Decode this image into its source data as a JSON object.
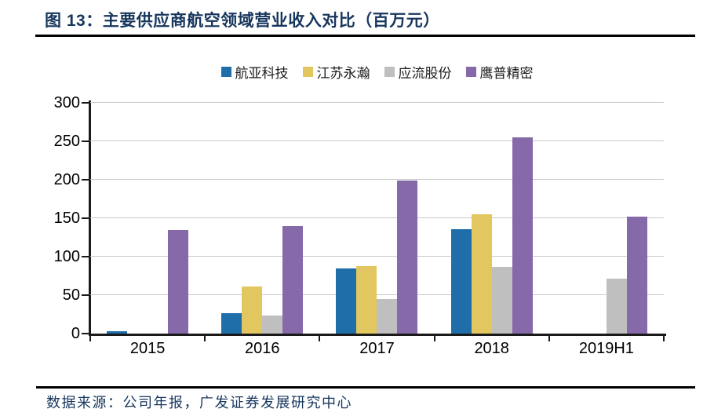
{
  "figure": {
    "title": "图 13：主要供应商航空领域营业收入对比（百万元）",
    "source": "数据来源：公司年报，广发证券发展研究中心"
  },
  "style": {
    "title_color": "#17365D",
    "rule_color": "#000000",
    "axis_color": "#1A1A1A",
    "gridline_color": "#C9C9C9",
    "tick_label_color": "#000000",
    "background": "#FFFFFF"
  },
  "chart_data": {
    "type": "bar",
    "title": "主要供应商航空领域营业收入对比",
    "unit": "百万元",
    "categories": [
      "2015",
      "2016",
      "2017",
      "2018",
      "2019H1"
    ],
    "series": [
      {
        "name": "航亚科技",
        "color": "#1F6EA9",
        "values": [
          3,
          27,
          85,
          136,
          0
        ]
      },
      {
        "name": "江苏永瀚",
        "color": "#E2C65F",
        "values": [
          0,
          61,
          88,
          155,
          0
        ]
      },
      {
        "name": "应流股份",
        "color": "#BFBFBF",
        "values": [
          0,
          23,
          45,
          87,
          71
        ]
      },
      {
        "name": "鹰普精密",
        "color": "#8569A9",
        "values": [
          135,
          140,
          199,
          255,
          152
        ]
      }
    ],
    "ylim": [
      0,
      300
    ],
    "ytick_step": 50,
    "yticks": [
      0,
      50,
      100,
      150,
      200,
      250,
      300
    ],
    "grid": true,
    "legend_position": "top"
  }
}
